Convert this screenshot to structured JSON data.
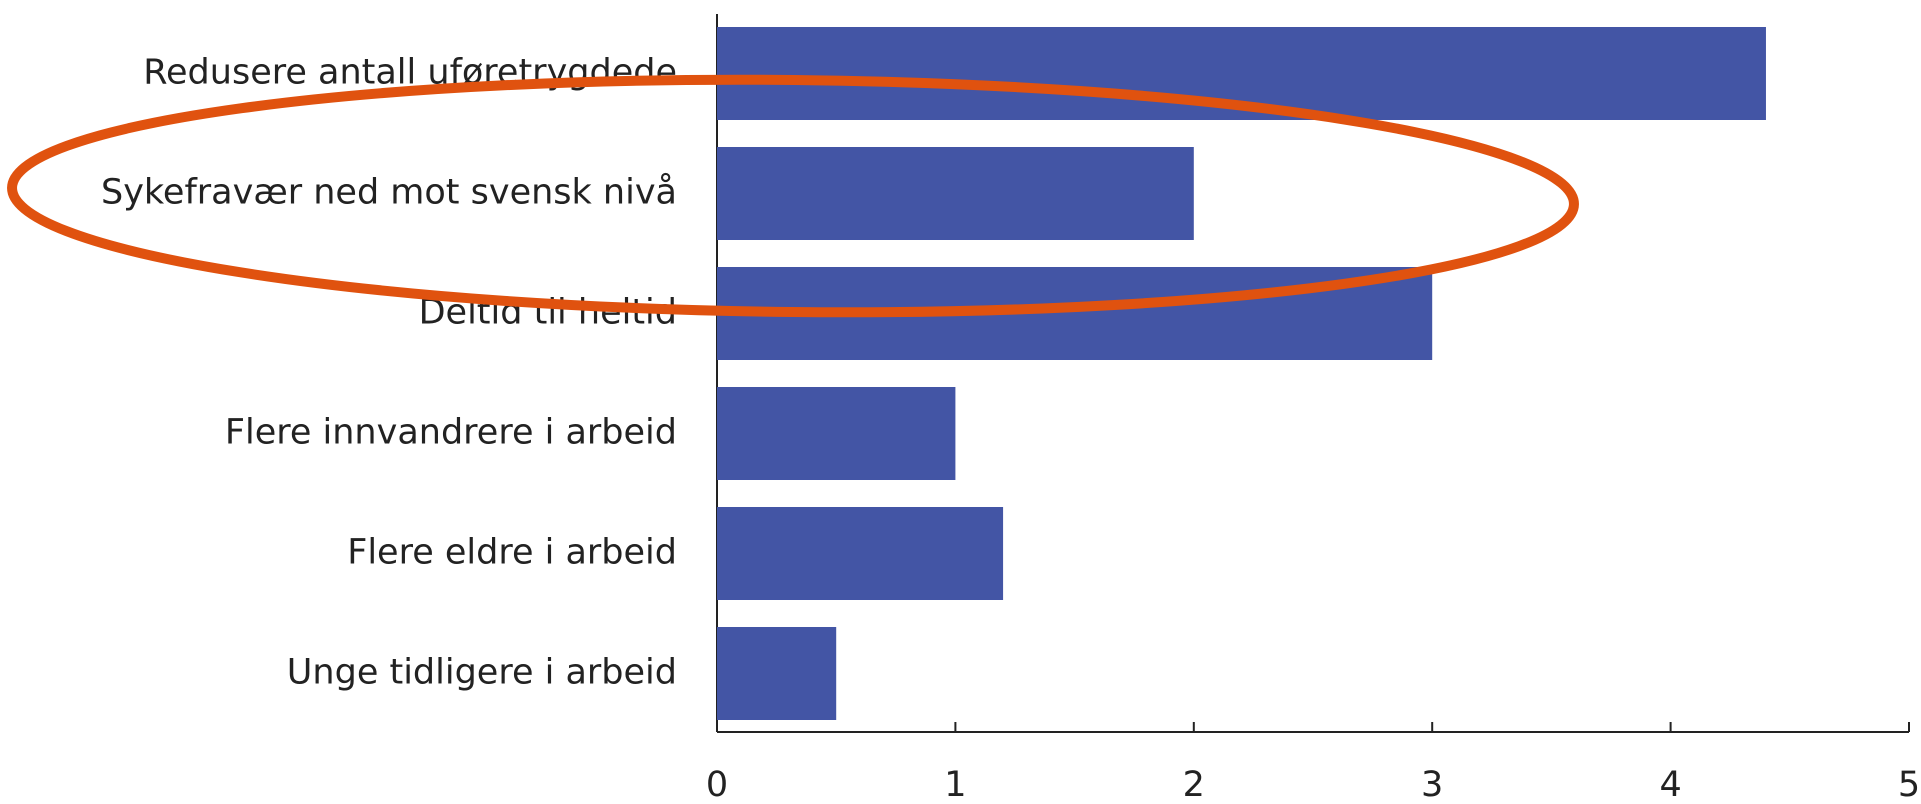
{
  "chart_data": {
    "type": "bar",
    "orientation": "horizontal",
    "categories": [
      "Redusere antall uføretrygdede",
      "Sykefravær ned mot svensk nivå",
      "Deltid til heltid",
      "Flere innvandrere i arbeid",
      "Flere eldre i arbeid",
      "Unge tidligere i arbeid"
    ],
    "values": [
      4.4,
      2.0,
      3.0,
      1.0,
      1.2,
      0.5
    ],
    "color": "#4355a5",
    "xlim": [
      0,
      5
    ],
    "xticks": [
      0,
      1,
      2,
      3,
      4,
      5
    ],
    "grid": false
  }
}
